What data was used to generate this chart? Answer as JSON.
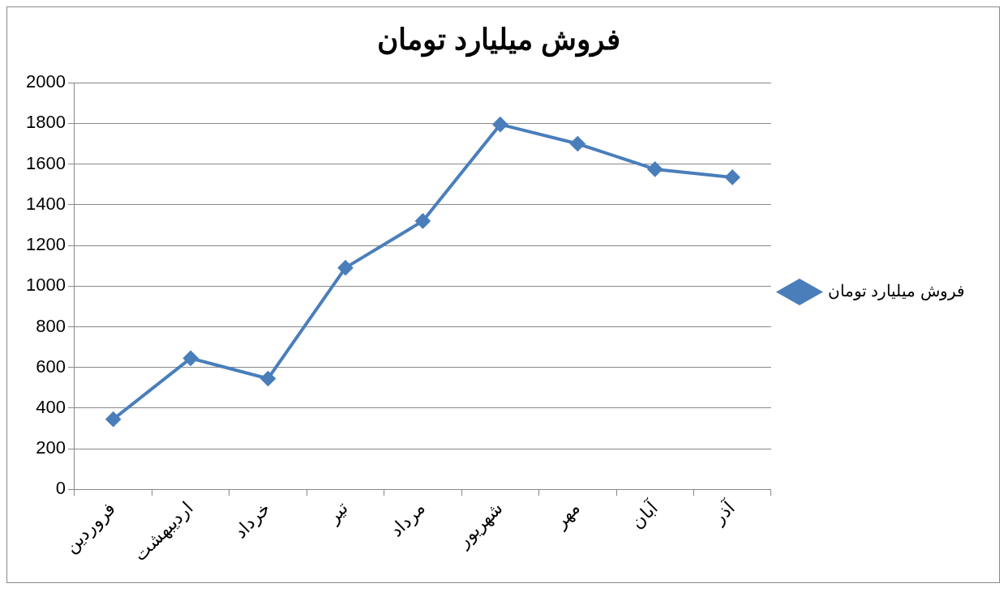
{
  "chart_data": {
    "type": "line",
    "title": "فروش میلیارد تومان",
    "categories": [
      "فروردین",
      "اردیبهشت",
      "خرداد",
      "تیر",
      "مرداد",
      "شهریور",
      "مهر",
      "آبان",
      "آذر"
    ],
    "series": [
      {
        "name": "فروش میلیارد تومان",
        "color": "#4a7ebb",
        "values": [
          345,
          645,
          545,
          1090,
          1320,
          1795,
          1700,
          1575,
          1535
        ]
      }
    ],
    "ylim": [
      0,
      2000
    ],
    "yticks": [
      0,
      200,
      400,
      600,
      800,
      1000,
      1200,
      1400,
      1600,
      1800,
      2000
    ],
    "grid": "y",
    "legend": "right",
    "marker": "diamond",
    "line_style": "solid"
  }
}
